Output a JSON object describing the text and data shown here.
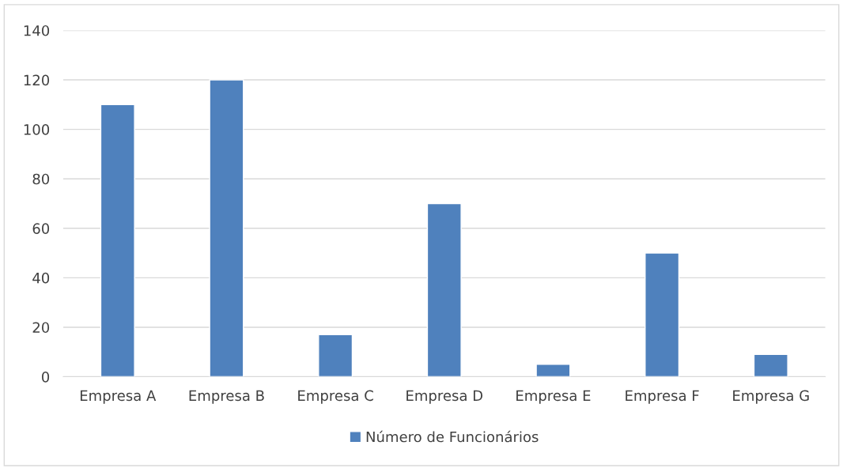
{
  "chart_data": {
    "type": "bar",
    "categories": [
      "Empresa A",
      "Empresa B",
      "Empresa C",
      "Empresa D",
      "Empresa E",
      "Empresa F",
      "Empresa G"
    ],
    "series": [
      {
        "name": "Número de Funcionários",
        "color": "#4f81bd",
        "values": [
          110,
          120,
          17,
          70,
          5,
          50,
          9
        ]
      }
    ],
    "ylim": [
      0,
      140
    ],
    "yticks": [
      0,
      20,
      40,
      60,
      80,
      100,
      120,
      140
    ],
    "grid": "y",
    "legend": "bottom"
  }
}
